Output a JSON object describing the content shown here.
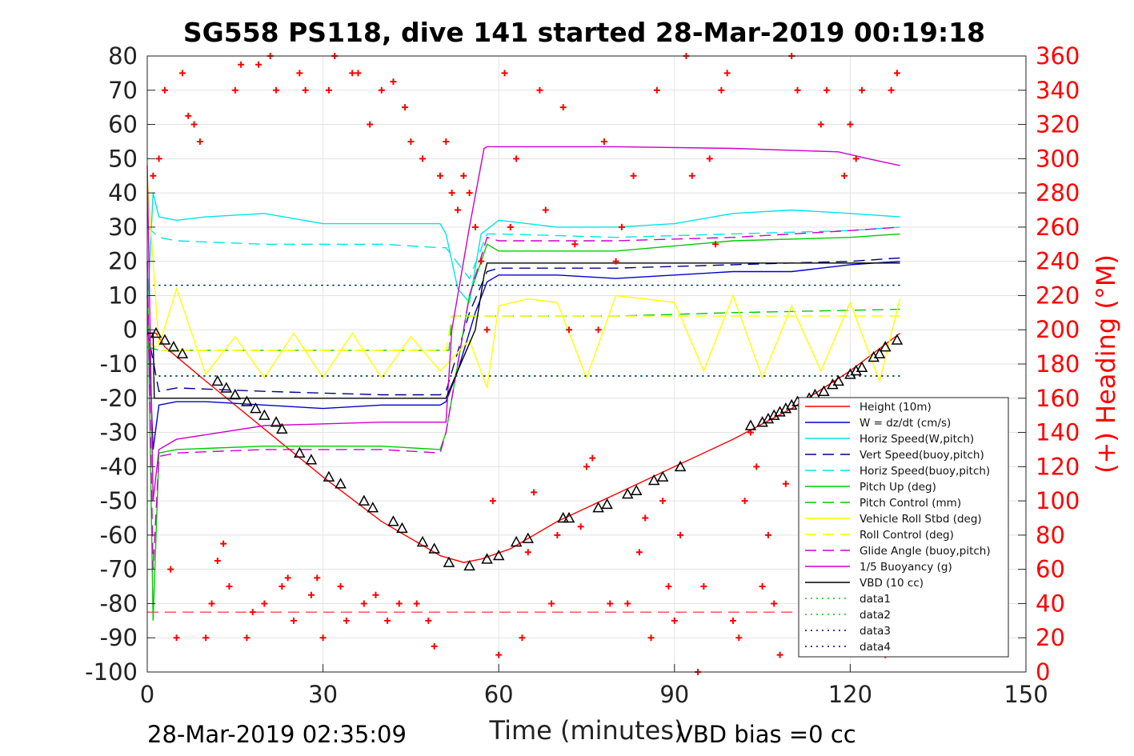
{
  "chart_data": {
    "type": "line",
    "title": "SG558 PS118, dive 141 started 28-Mar-2019 00:19:18",
    "xlabel": "Time (minutes)",
    "ylabel_right": "(+) Heading (°M)",
    "footer_left": "28-Mar-2019 02:35:09",
    "footer_right": "VBD bias =0 cc",
    "xlim": [
      0,
      150
    ],
    "ylim": [
      -100,
      80
    ],
    "ylim_right": [
      0,
      360
    ],
    "xticks": [
      0,
      30,
      60,
      90,
      120,
      150
    ],
    "yticks": [
      80,
      70,
      60,
      50,
      40,
      30,
      20,
      10,
      0,
      -10,
      -20,
      -30,
      -40,
      -50,
      -60,
      -70,
      -80,
      -90,
      -100
    ],
    "yticks_right": [
      360,
      340,
      320,
      300,
      280,
      260,
      240,
      220,
      200,
      180,
      160,
      140,
      120,
      100,
      80,
      60,
      40,
      20,
      0
    ],
    "grid": true,
    "legend_position": "bottom-right",
    "legend": [
      {
        "label": "Height (10m)",
        "color": "#ff0000",
        "dash": "solid"
      },
      {
        "label": "W = dz/dt (cm/s)",
        "color": "#0000cc",
        "dash": "solid"
      },
      {
        "label": "Horiz Speed(W,pitch)",
        "color": "#00e5e5",
        "dash": "solid"
      },
      {
        "label": "Vert Speed(buoy,pitch)",
        "color": "#00008b",
        "dash": "dashed"
      },
      {
        "label": "Horiz Speed(buoy,pitch)",
        "color": "#00e5e5",
        "dash": "dashed"
      },
      {
        "label": "Pitch Up (deg)",
        "color": "#00cc00",
        "dash": "solid"
      },
      {
        "label": "Pitch Control (mm)",
        "color": "#00cc00",
        "dash": "dashed"
      },
      {
        "label": "Vehicle Roll Stbd (deg)",
        "color": "#ffff00",
        "dash": "solid"
      },
      {
        "label": "Roll Control (deg)",
        "color": "#ffff00",
        "dash": "dashed"
      },
      {
        "label": "Glide Angle (buoy,pitch)",
        "color": "#cc00cc",
        "dash": "dashed"
      },
      {
        "label": "1/5 Buoyancy (g)",
        "color": "#cc00cc",
        "dash": "solid"
      },
      {
        "label": "VBD (10 cc)",
        "color": "#000000",
        "dash": "solid"
      },
      {
        "label": "data1",
        "color": "#00cc00",
        "dash": "dotted"
      },
      {
        "label": "data2",
        "color": "#00cc00",
        "dash": "dotted"
      },
      {
        "label": "data3",
        "color": "#00008b",
        "dash": "dotted"
      },
      {
        "label": "data4",
        "color": "#00008b",
        "dash": "dotted"
      }
    ],
    "series": [
      {
        "name": "Height (10m)",
        "color": "#ff0000",
        "dash": "solid",
        "x": [
          0,
          1.5,
          3,
          10,
          20,
          30,
          40,
          50,
          54,
          57,
          62,
          70,
          80,
          90,
          100,
          110,
          120,
          128.5
        ],
        "y": [
          -1,
          -1,
          -5,
          -15,
          -29,
          -43,
          -56,
          -66,
          -68,
          -67,
          -64,
          -56,
          -48,
          -40,
          -32,
          -23,
          -12,
          -1
        ]
      },
      {
        "name": "W = dz/dt (cm/s)",
        "color": "#0000cc",
        "dash": "solid",
        "x": [
          0,
          1,
          2,
          5,
          10,
          20,
          30,
          40,
          50,
          51,
          53,
          56,
          58,
          60,
          70,
          80,
          90,
          100,
          110,
          120,
          128.5
        ],
        "y": [
          10,
          -35,
          -22,
          -21,
          -21,
          -22,
          -23,
          -22,
          -22,
          -21,
          -12,
          5,
          14,
          16,
          16,
          15,
          16,
          17,
          17,
          19,
          20
        ]
      },
      {
        "name": "Horiz Speed(W,pitch)",
        "color": "#00e5e5",
        "dash": "solid",
        "x": [
          0,
          1,
          2,
          5,
          10,
          20,
          30,
          40,
          50,
          51,
          53,
          55,
          57,
          60,
          70,
          80,
          90,
          100,
          110,
          120,
          128.5
        ],
        "y": [
          5,
          40,
          33,
          32,
          33,
          34,
          31,
          31,
          31,
          28,
          12,
          8,
          28,
          32,
          30,
          30,
          31,
          34,
          35,
          34,
          33
        ]
      },
      {
        "name": "Vert Speed(buoy,pitch)",
        "color": "#00008b",
        "dash": "dashed",
        "x": [
          0,
          2,
          5,
          20,
          40,
          50,
          51,
          55,
          58,
          60,
          80,
          100,
          120,
          128.5
        ],
        "y": [
          0,
          -18,
          -17,
          -18,
          -19,
          -19,
          -18,
          5,
          17,
          18,
          18,
          19,
          20,
          21
        ]
      },
      {
        "name": "Horiz Speed(buoy,pitch)",
        "color": "#00e5e5",
        "dash": "dashed",
        "x": [
          0,
          2,
          5,
          20,
          40,
          50,
          51,
          55,
          58,
          60,
          80,
          100,
          120,
          128.5
        ],
        "y": [
          30,
          27,
          26,
          25,
          25,
          24,
          24,
          15,
          28,
          28,
          27,
          28,
          29,
          30
        ]
      },
      {
        "name": "Pitch Up (deg)",
        "color": "#00cc00",
        "dash": "solid",
        "x": [
          0,
          1,
          2,
          5,
          20,
          40,
          50,
          51,
          53,
          55,
          58,
          60,
          80,
          100,
          120,
          128.5
        ],
        "y": [
          20,
          -85,
          -36,
          -35,
          -34,
          -34,
          -35,
          -30,
          -10,
          10,
          25,
          23,
          23,
          26,
          27,
          28
        ]
      },
      {
        "name": "Pitch Control (mm)",
        "color": "#00cc00",
        "dash": "dashed",
        "x": [
          0,
          2,
          50,
          51.5,
          52,
          80,
          100,
          128.5
        ],
        "y": [
          -5,
          -6,
          -6,
          -6,
          4,
          4,
          5,
          6
        ]
      },
      {
        "name": "Vehicle Roll Stbd (deg)",
        "color": "#ffff00",
        "dash": "solid",
        "x": [
          0,
          2,
          5,
          10,
          15,
          20,
          25,
          30,
          35,
          40,
          45,
          50,
          55,
          58,
          60,
          65,
          70,
          75,
          80,
          85,
          90,
          95,
          100,
          105,
          110,
          115,
          120,
          125,
          128.5
        ],
        "y": [
          45,
          -5,
          12,
          -13,
          -2,
          -14,
          -1,
          -14,
          -1,
          -14,
          -2,
          -12,
          -3,
          -17,
          7,
          9,
          8,
          -14,
          10,
          9,
          8,
          -12,
          10,
          -14,
          7,
          -12,
          8,
          -15,
          9
        ]
      },
      {
        "name": "Roll Control (deg)",
        "color": "#ffff00",
        "dash": "dashed",
        "x": [
          0,
          2,
          51,
          52,
          128.5
        ],
        "y": [
          -3,
          -6,
          -6,
          4,
          4
        ]
      },
      {
        "name": "Glide Angle (buoy,pitch)",
        "color": "#cc00cc",
        "dash": "dashed",
        "x": [
          0,
          1,
          2,
          5,
          20,
          40,
          50,
          51,
          53,
          55,
          58,
          60,
          80,
          100,
          120,
          128.5
        ],
        "y": [
          20,
          -70,
          -37,
          -36,
          -35,
          -35,
          -36,
          -30,
          -10,
          10,
          27,
          26,
          26,
          27,
          29,
          30
        ]
      },
      {
        "name": "1/5 Buoyancy (g)",
        "color": "#cc00cc",
        "dash": "solid",
        "x": [
          0,
          1,
          2,
          5,
          20,
          40,
          51,
          52,
          55,
          57.5,
          58,
          80,
          100,
          118,
          123,
          128.5
        ],
        "y": [
          48,
          -50,
          -35,
          -32,
          -28,
          -27,
          -27,
          0,
          30,
          53,
          53.5,
          53.5,
          53,
          52,
          50,
          48
        ]
      },
      {
        "name": "VBD (10 cc)",
        "color": "#000000",
        "dash": "solid",
        "x": [
          0,
          1,
          1.2,
          51,
          56,
          57.5,
          58,
          128.5
        ],
        "y": [
          -1,
          -1,
          -20,
          -20,
          0,
          16,
          19.5,
          19.5
        ]
      },
      {
        "name": "data1",
        "color": "#00cc00",
        "dash": "dotted",
        "x": [
          0,
          128.5
        ],
        "y": [
          13,
          13
        ]
      },
      {
        "name": "data2",
        "color": "#00cc00",
        "dash": "dotted",
        "x": [
          0,
          128.5
        ],
        "y": [
          -13.5,
          -13.5
        ]
      },
      {
        "name": "data3",
        "color": "#00008b",
        "dash": "dotted",
        "x": [
          2,
          128.5
        ],
        "y": [
          13,
          13
        ]
      },
      {
        "name": "data4",
        "color": "#00008b",
        "dash": "dotted",
        "x": [
          2,
          128.5
        ],
        "y": [
          -13.5,
          -13.5
        ]
      }
    ],
    "heading": {
      "name": "(+) Heading",
      "marker": "+",
      "color": "#ff0000",
      "axis": "right",
      "x": [
        1,
        2,
        3,
        4,
        5,
        6,
        7,
        8,
        9,
        10,
        11,
        12,
        13,
        14,
        15,
        16,
        17,
        18,
        19,
        20,
        21,
        22,
        23,
        24,
        25,
        26,
        27,
        28,
        29,
        30,
        31,
        32,
        33,
        34,
        35,
        36,
        37,
        38,
        39,
        40,
        41,
        42,
        43,
        44,
        45,
        46,
        47,
        48,
        49,
        50,
        51,
        52,
        53,
        54,
        55,
        56,
        57,
        58,
        59,
        60,
        61,
        62,
        63,
        64,
        65,
        66,
        67,
        68,
        69,
        70,
        71,
        72,
        73,
        74,
        75,
        76,
        77,
        78,
        79,
        80,
        81,
        82,
        83,
        84,
        85,
        86,
        87,
        88,
        89,
        90,
        91,
        92,
        93,
        94,
        95,
        96,
        97,
        98,
        99,
        100,
        101,
        102,
        103,
        104,
        105,
        106,
        107,
        108,
        109,
        110,
        111,
        112,
        113,
        114,
        115,
        116,
        117,
        118,
        119,
        120,
        121,
        122,
        123,
        124,
        125,
        126,
        127,
        128
      ],
      "y": [
        290,
        300,
        340,
        60,
        20,
        350,
        325,
        320,
        310,
        20,
        40,
        65,
        75,
        50,
        340,
        355,
        20,
        35,
        355,
        40,
        360,
        340,
        50,
        55,
        30,
        350,
        340,
        45,
        55,
        20,
        340,
        360,
        50,
        30,
        350,
        350,
        40,
        320,
        45,
        340,
        30,
        345,
        40,
        330,
        310,
        40,
        300,
        30,
        15,
        290,
        310,
        280,
        270,
        290,
        280,
        260,
        240,
        200,
        100,
        10,
        350,
        260,
        300,
        20,
        70,
        105,
        340,
        270,
        40,
        80,
        330,
        200,
        250,
        85,
        120,
        125,
        200,
        310,
        40,
        240,
        260,
        40,
        290,
        70,
        90,
        20,
        340,
        100,
        50,
        30,
        80,
        360,
        290,
        0,
        50,
        300,
        250,
        340,
        350,
        30,
        20,
        100,
        140,
        120,
        50,
        80,
        40,
        10,
        110,
        360,
        340,
        20,
        50,
        100,
        320,
        340,
        60,
        20,
        290,
        320,
        300,
        340,
        50,
        30,
        70,
        10,
        340,
        350
      ]
    },
    "depth_markers": {
      "name": "Height (10m)",
      "marker": "triangle",
      "color": "#000000",
      "x": [
        1.5,
        3,
        4.5,
        6,
        12,
        13.5,
        15,
        17,
        18.5,
        20,
        22,
        23,
        26,
        28,
        31,
        33,
        37,
        38.5,
        42,
        43.5,
        47,
        49,
        51.5,
        55,
        58,
        60,
        63,
        65,
        71,
        72,
        77,
        78.5,
        82,
        83.5,
        86.5,
        88,
        91,
        103,
        105,
        106,
        107,
        108,
        109,
        110,
        111,
        113,
        114,
        115.5,
        117,
        118,
        120,
        121,
        122,
        124,
        125,
        126,
        128
      ],
      "y": [
        -1,
        -3,
        -5,
        -7,
        -15,
        -17,
        -19,
        -21,
        -23,
        -25,
        -27,
        -29,
        -36,
        -38,
        -43,
        -45,
        -50,
        -52,
        -56,
        -58,
        -62,
        -64,
        -68,
        -69,
        -67,
        -66,
        -62,
        -61,
        -55,
        -55,
        -52,
        -51,
        -48,
        -47,
        -44,
        -43,
        -40,
        -28,
        -27,
        -26,
        -25,
        -24,
        -23,
        -22,
        -21,
        -20,
        -19,
        -18,
        -16,
        -15,
        -13,
        -12,
        -11,
        -8,
        -7,
        -5,
        -3
      ]
    },
    "dashed_reference": {
      "name": "heading reference",
      "color": "#ff0000",
      "axis": "right",
      "x": [
        0,
        128.5
      ],
      "y": [
        35,
        35
      ]
    }
  }
}
